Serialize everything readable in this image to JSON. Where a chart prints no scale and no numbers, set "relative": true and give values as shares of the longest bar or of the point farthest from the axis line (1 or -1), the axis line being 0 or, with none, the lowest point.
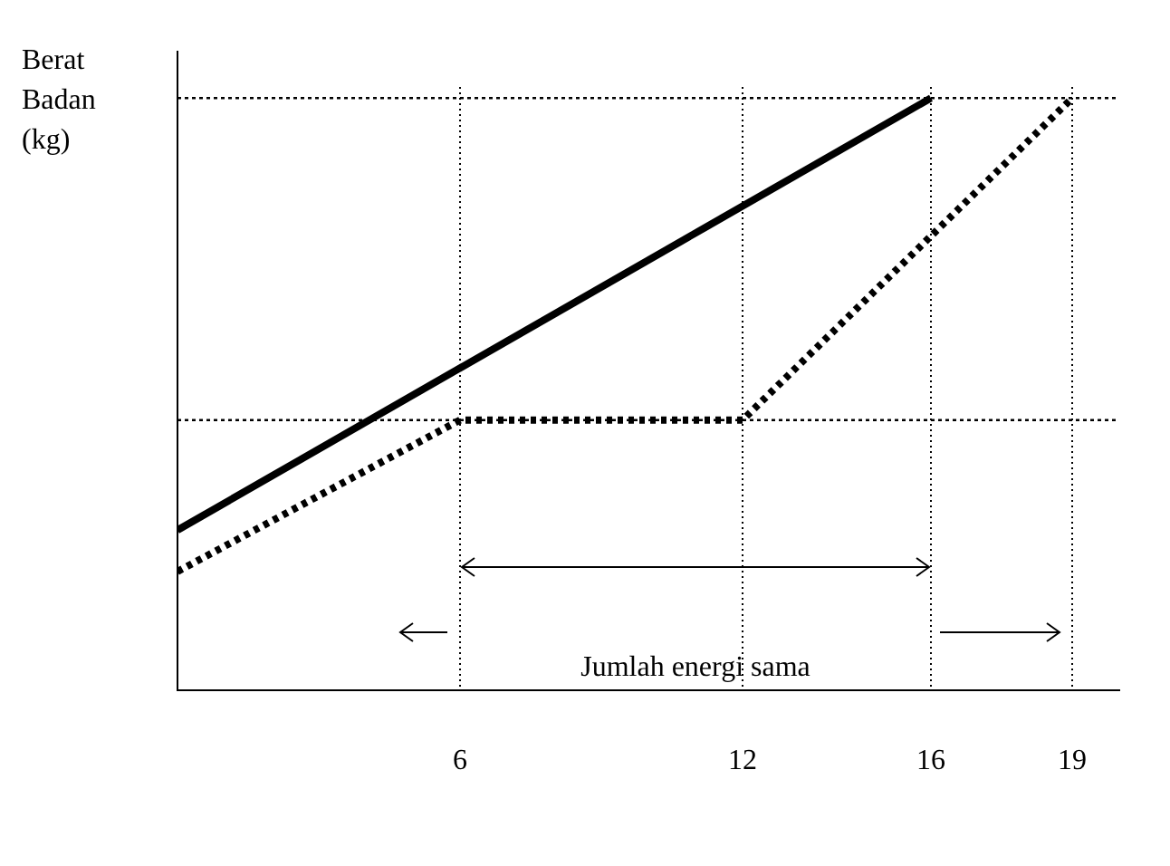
{
  "chart_data": {
    "type": "line",
    "ylabel": "Berat Badan (kg)",
    "relative": true,
    "xlim": [
      0,
      20
    ],
    "xticks": [
      6,
      12,
      16,
      19
    ],
    "series": [
      {
        "color": "#000000",
        "line_style": "solid",
        "x": [
          0,
          16
        ],
        "values": [
          0.27,
          1
        ]
      },
      {
        "color": "#000000",
        "line_style": "dotted",
        "x": [
          0,
          6,
          12,
          19
        ],
        "values": [
          0.2,
          0.456,
          0.456,
          1
        ]
      }
    ],
    "ref_lines": [
      {
        "axis": "y",
        "value": 1,
        "line_style": "dotted"
      },
      {
        "axis": "y",
        "value": 0.456,
        "line_style": "dotted"
      },
      {
        "axis": "x",
        "value": 6,
        "line_style": "dotted"
      },
      {
        "axis": "x",
        "value": 12,
        "line_style": "dotted"
      },
      {
        "axis": "x",
        "value": 16,
        "line_style": "dotted"
      },
      {
        "axis": "x",
        "value": 19,
        "line_style": "dotted"
      }
    ],
    "annotations": [
      "Jumlah energi sama"
    ],
    "legend": false,
    "grid": false,
    "tick_labels": "x"
  }
}
